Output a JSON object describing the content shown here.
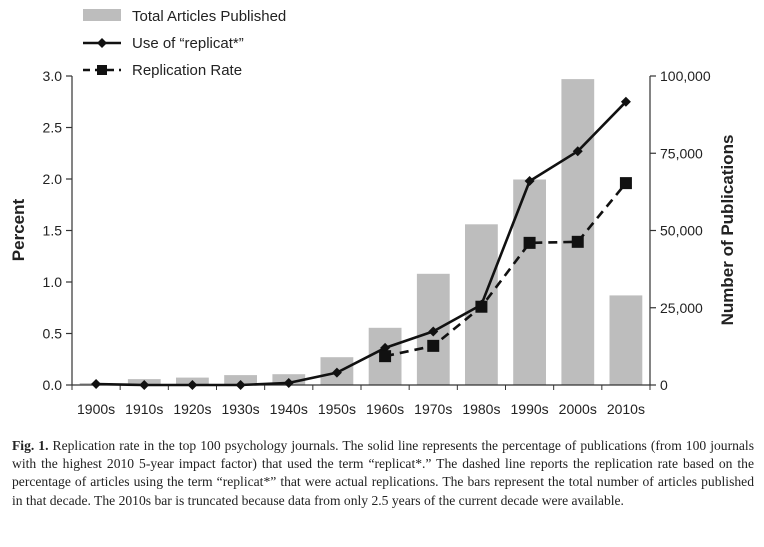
{
  "chart_data": {
    "type": "bar",
    "categories": [
      "1900s",
      "1910s",
      "1920s",
      "1930s",
      "1940s",
      "1950s",
      "1960s",
      "1970s",
      "1980s",
      "1990s",
      "2000s",
      "2010s"
    ],
    "left_axis": {
      "label": "Percent",
      "min": 0,
      "max": 3.0,
      "ticks": [
        "0.0",
        "0.5",
        "1.0",
        "1.5",
        "2.0",
        "2.5",
        "3.0"
      ]
    },
    "right_axis": {
      "label": "Number of Publications",
      "min": 0,
      "max": 100000,
      "ticks": [
        "0",
        "25,000",
        "50,000",
        "75,000",
        "100,000"
      ]
    },
    "series": [
      {
        "name": "Total Articles Published",
        "type": "bar",
        "axis": "right",
        "color": "#bdbdbd",
        "values": [
          600,
          1900,
          2400,
          3200,
          3500,
          9000,
          18500,
          36000,
          52000,
          66500,
          99000,
          29000
        ]
      },
      {
        "name": "Use of “replicat*”",
        "type": "line",
        "style": "solid",
        "marker": "diamond",
        "axis": "left",
        "color": "#111111",
        "values": [
          0.01,
          0.0,
          0.0,
          0.0,
          0.02,
          0.12,
          0.36,
          0.52,
          0.78,
          1.98,
          2.27,
          2.75
        ]
      },
      {
        "name": "Replication Rate",
        "type": "line",
        "style": "dashed",
        "marker": "square",
        "axis": "left",
        "color": "#111111",
        "values": [
          null,
          null,
          null,
          null,
          null,
          null,
          0.28,
          0.38,
          0.76,
          1.38,
          1.39,
          1.96
        ]
      }
    ],
    "legend_position": "top-left",
    "grid": false
  },
  "caption": {
    "label": "Fig. 1.",
    "text": "Replication rate in the top 100 psychology journals. The solid line represents the percentage of publications (from 100 journals with the highest 2010 5-year impact factor) that used the term “replicat*.” The dashed line reports the replication rate based on the percentage of articles using the term “replicat*” that were actual replications. The bars represent the total number of articles published in that decade. The 2010s bar is truncated because data from only 2.5 years of the current decade were available."
  }
}
